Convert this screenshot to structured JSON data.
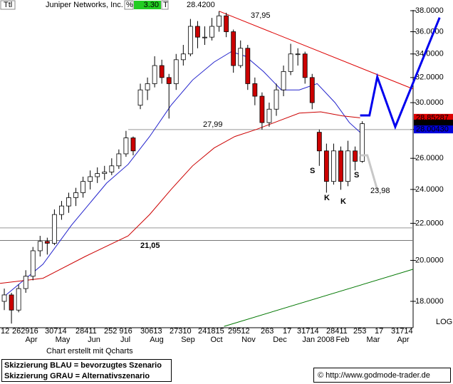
{
  "header": {
    "symbol": "Ttl",
    "name": "Juniper Networks, Inc.",
    "pct_label": "%",
    "change": "3.30",
    "t_label": "T",
    "last": "28.4200"
  },
  "chart_data": {
    "type": "candlestick",
    "log_scale": true,
    "scale_label": "LOG",
    "xlim": [
      -0.6,
      57.1
    ],
    "ylim": [
      16.82,
      38.07
    ],
    "yticks": [
      {
        "value": 18,
        "label": "18.0000"
      },
      {
        "value": 20,
        "label": "20.0000"
      },
      {
        "value": 22,
        "label": "22.0000"
      },
      {
        "value": 24,
        "label": "24.0000"
      },
      {
        "value": 26,
        "label": "26.0000"
      },
      {
        "value": 28,
        "label": "28.0000"
      },
      {
        "value": 30,
        "label": "30.0000"
      },
      {
        "value": 32,
        "label": "32.0000"
      },
      {
        "value": 34,
        "label": "34.0000"
      },
      {
        "value": 36,
        "label": "36.0000"
      },
      {
        "value": 38,
        "label": "38.0000"
      }
    ],
    "day_labels": [
      "12",
      "262916",
      "30714",
      "28411",
      "252 916",
      "30613",
      "27310",
      "241815",
      "29512",
      "263",
      "17",
      "31714",
      "28411",
      "253",
      "17",
      "31714"
    ],
    "months": [
      "Apr",
      "May",
      "Jun",
      "Jul",
      "Aug",
      "Sep",
      "Oct",
      "Nov",
      "Dec",
      "Jan 2008",
      "Feb",
      "Mar",
      "Apr"
    ],
    "up_color": "#ffffff",
    "down_color": "#cc0000",
    "candles": {
      "open": [
        18.0,
        18.3,
        17.6,
        18.6,
        19.2,
        20.5,
        21.0,
        20.9,
        22.5,
        23.0,
        23.5,
        23.8,
        24.5,
        24.8,
        25.0,
        25.1,
        25.5,
        26.3,
        27.4,
        29.8,
        31.0,
        31.5,
        33.0,
        32.0,
        31.5,
        33.5,
        34.0,
        36.5,
        35.5,
        35.5,
        36.5,
        37.5,
        36.0,
        33.0,
        34.5,
        31.5,
        30.5,
        28.5,
        29.5,
        31.0,
        32.5,
        34.0,
        34.0,
        32.0,
        27.8,
        26.5,
        24.5,
        26.5,
        24.5,
        26.5,
        25.8
      ],
      "high": [
        18.6,
        18.4,
        18.8,
        19.5,
        20.7,
        21.3,
        21.2,
        22.8,
        23.3,
        23.8,
        24.1,
        24.8,
        25.2,
        25.4,
        25.5,
        26.0,
        26.6,
        27.9,
        27.5,
        31.5,
        32.0,
        33.8,
        33.5,
        32.3,
        34.0,
        34.8,
        37.2,
        37.0,
        36.5,
        37.3,
        37.95,
        37.8,
        36.2,
        35.2,
        34.8,
        32.0,
        30.8,
        30.0,
        31.5,
        33.0,
        34.9,
        34.5,
        34.2,
        32.3,
        28.0,
        27.0,
        27.0,
        26.8,
        27.2,
        26.8,
        28.6
      ],
      "low": [
        17.6,
        17.0,
        17.5,
        18.4,
        19.0,
        20.2,
        20.3,
        20.8,
        22.2,
        22.6,
        23.0,
        23.5,
        24.0,
        24.4,
        24.6,
        24.9,
        25.3,
        26.1,
        26.2,
        29.5,
        30.2,
        31.2,
        31.5,
        28.8,
        31.0,
        33.0,
        33.8,
        34.5,
        34.8,
        35.2,
        36.0,
        35.5,
        32.4,
        32.8,
        31.0,
        29.8,
        27.99,
        28.2,
        29.0,
        30.5,
        32.2,
        33.0,
        31.5,
        29.5,
        25.5,
        23.8,
        24.3,
        23.98,
        24.2,
        25.2,
        25.7
      ],
      "close": [
        18.3,
        17.6,
        18.6,
        19.2,
        20.5,
        21.0,
        20.9,
        22.5,
        23.0,
        23.5,
        23.8,
        24.5,
        24.8,
        25.0,
        25.1,
        25.5,
        26.3,
        27.4,
        26.5,
        31.0,
        31.5,
        33.0,
        32.0,
        31.5,
        33.5,
        34.0,
        36.5,
        35.5,
        35.5,
        36.5,
        37.5,
        36.0,
        33.0,
        34.5,
        31.5,
        30.5,
        28.5,
        29.5,
        31.0,
        32.5,
        34.0,
        34.0,
        32.0,
        30.0,
        26.5,
        24.5,
        26.5,
        24.5,
        26.5,
        25.8,
        28.42
      ]
    },
    "lines": [
      {
        "color": "#2222cc",
        "x": [
          -0.1,
          5.4,
          9.4,
          14.3,
          17.3,
          20.3,
          23.3,
          26.3,
          29.3,
          31.7,
          33.7,
          36.2,
          38.7,
          41.2,
          43.7,
          46.2,
          48.2,
          49.7
        ],
        "values": [
          18.2,
          19.8,
          21.9,
          24.4,
          25.6,
          27.5,
          29.8,
          31.8,
          33.3,
          34.2,
          33.8,
          32.5,
          31.0,
          31.0,
          31.5,
          30.0,
          28.5,
          27.8
        ]
      },
      {
        "color": "#cc0000",
        "x": [
          -0.6,
          5.4,
          11.3,
          17.3,
          20.3,
          23.3,
          26.3,
          29.3,
          32.2,
          35.2,
          38.2,
          41.2,
          44.2,
          47.2,
          49.7
        ],
        "values": [
          18.85,
          19.1,
          20.2,
          21.3,
          22.5,
          24.0,
          25.5,
          26.7,
          27.5,
          28.0,
          28.6,
          29.2,
          29.3,
          29.0,
          28.85
        ]
      }
    ],
    "levels": [
      {
        "value": 27.99,
        "color": "#999999"
      },
      {
        "value": 21.74,
        "color": "#999999"
      },
      {
        "value": 21.05,
        "color": "#777777"
      }
    ],
    "trendlines": [
      {
        "color": "#dd0000",
        "x": [
          30.0,
          57.1
        ],
        "values": [
          37.95,
          31.07
        ]
      },
      {
        "color": "#007700",
        "x": [
          30.7,
          57.1
        ],
        "values": [
          16.88,
          19.55
        ]
      }
    ],
    "scenarios": [
      {
        "color": "#0000ee",
        "x": [
          49.7,
          51.0,
          52.1,
          54.6,
          60.8
        ],
        "values": [
          29.03,
          29.03,
          32.05,
          28.19,
          37.33
        ]
      },
      {
        "color": "#c8c8c8",
        "x": [
          49.7,
          50.7,
          52.1
        ],
        "values": [
          26.2,
          26.2,
          23.98
        ]
      }
    ],
    "annotations": [
      "37,95",
      "27,99",
      "21,05",
      "23,98",
      "S",
      "S",
      "K",
      "K"
    ],
    "price_boxes": [
      {
        "value": 28.85287,
        "label": "28.85287",
        "color": "#dd0000"
      },
      {
        "value": 28.42,
        "label": "28.4200",
        "color": "#000000"
      },
      {
        "value": 28.0043,
        "label": "28.00430",
        "color": "#0000dd"
      }
    ]
  },
  "footer": {
    "credit": "Chart erstellt mit Qcharts",
    "legend": [
      "Skizzierung BLAU = bevorzugtes Szenario",
      "Skizzierung GRAU = Alternativszenario"
    ],
    "copyright": "© http://www.godmode-trader.de"
  }
}
